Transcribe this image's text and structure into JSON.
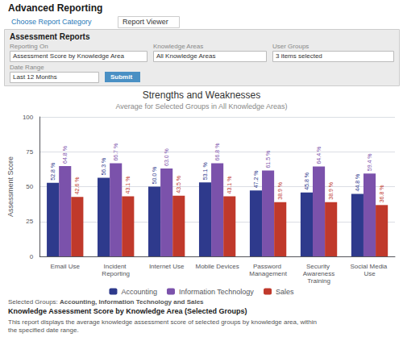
{
  "chart_data": {
    "type": "bar",
    "title": "Strengths and Weaknesses",
    "subtitle": "Average for Selected Groups in All Knowledge Areas)",
    "ylabel": "Assessment Score",
    "categories": [
      "Email Use",
      "Incident Reporting",
      "Internet Use",
      "Mobile Devices",
      "Password Management",
      "Security Awareness\nTraining",
      "Social Media Use"
    ],
    "series": [
      {
        "name": "Accounting",
        "color": "#2e3a8c",
        "values": [
          52.8,
          56.3,
          50.0,
          53.1,
          47.2,
          45.8,
          44.8
        ],
        "value_labels": [
          "52.8 %",
          "56.3 %",
          "50.0 %",
          "53.1 %",
          "47.2 %",
          "45.8 %",
          "44.8 %"
        ]
      },
      {
        "name": "Information Technology",
        "color": "#7b52ab",
        "values": [
          64.8,
          66.7,
          63.0,
          66.8,
          61.5,
          64.4,
          59.4
        ],
        "value_labels": [
          "64.8 %",
          "66.7 %",
          "63.0 %",
          "66.8 %",
          "61.5 %",
          "64.4 %",
          "59.4 %"
        ]
      },
      {
        "name": "Sales",
        "color": "#c0392b",
        "values": [
          42.6,
          43.1,
          43.5,
          43.1,
          38.9,
          38.9,
          36.8
        ],
        "value_labels": [
          "42.6 %",
          "43.1 %",
          "43.5 %",
          "43.1 %",
          "38.9 %",
          "38.9 %",
          "36.8 %"
        ]
      }
    ],
    "ylim": [
      0,
      100
    ],
    "yticks": [
      0,
      25,
      50,
      75,
      100
    ],
    "grid": true,
    "legend": "bottom",
    "data_labels": true,
    "annotations": [
      "Advanced Reporting",
      "Choose Report Category",
      "Report Viewer",
      "Assessment Reports",
      "Reporting On",
      "Assessment Score by Knowledge Area",
      "Knowledge Areas",
      "All Knowledge Areas",
      "User Groups",
      "3 items selected",
      "Date Range",
      "Last 12 Months",
      "Submit",
      "Selected Groups: ",
      "Accounting, Information Technology and Sales",
      "Knowledge Assessment Score by Knowledge Area (Selected Groups)",
      "This report displays the average knowledge assessment score of selected groups by knowledge area, within the specified date range."
    ]
  }
}
